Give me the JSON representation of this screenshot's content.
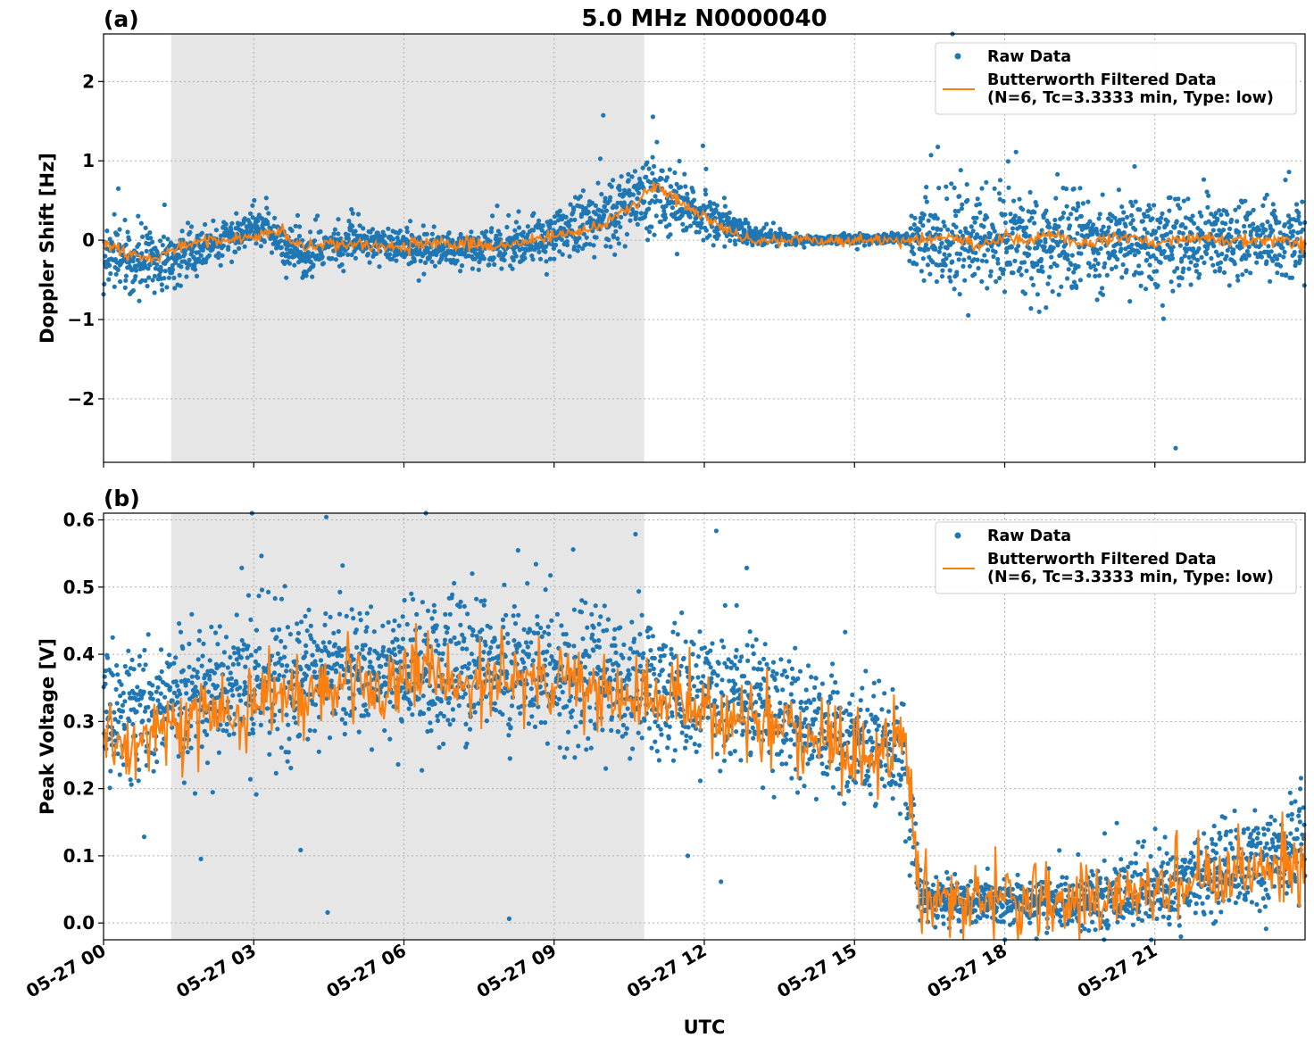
{
  "title": "5.0 MHz N0000040",
  "xlabel": "UTC",
  "x_ticks": [
    "05-27 00",
    "05-27 03",
    "05-27 06",
    "05-27 09",
    "05-27 12",
    "05-27 15",
    "05-27 18",
    "05-27 21"
  ],
  "legend": {
    "raw": "Raw Data",
    "filtered_line1": "Butterworth Filtered Data",
    "filtered_line2": "(N=6, Tc=3.3333 min, Type: low)"
  },
  "colors": {
    "raw": "#1f77b4",
    "filtered": "#ff7f0e",
    "shade": "#e6e6e6",
    "grid": "#b0b0b0"
  },
  "chart_data": [
    {
      "panel": "(a)",
      "type": "scatter",
      "ylabel": "Doppler Shift [Hz]",
      "xlim_hours": [
        0,
        24
      ],
      "ylim": [
        -2.8,
        2.6
      ],
      "y_ticks": [
        -2,
        -1,
        0,
        1,
        2
      ],
      "shaded_interval_hours": [
        1.35,
        10.8
      ],
      "grid": true,
      "legend_position": "top-right",
      "series": [
        {
          "name": "Raw Data",
          "style": "dots",
          "x_hours": [
            0,
            1,
            2,
            3,
            4,
            5,
            6,
            7,
            8,
            9,
            10,
            11,
            12,
            13,
            14,
            15,
            16,
            16.3,
            17,
            18,
            19,
            20,
            21,
            22,
            23,
            24
          ],
          "y_center": [
            -0.15,
            -0.3,
            -0.1,
            0.2,
            -0.2,
            0.0,
            -0.1,
            -0.1,
            -0.1,
            0.05,
            0.3,
            0.6,
            0.3,
            0.05,
            0.0,
            0.02,
            0.02,
            0.0,
            0.0,
            -0.05,
            0.0,
            -0.05,
            0.0,
            0.0,
            0.0,
            0.0
          ],
          "y_spread": [
            0.35,
            0.35,
            0.2,
            0.2,
            0.3,
            0.15,
            0.2,
            0.2,
            0.25,
            0.3,
            0.35,
            0.45,
            0.3,
            0.1,
            0.05,
            0.05,
            0.05,
            0.6,
            0.6,
            0.6,
            0.6,
            0.55,
            0.5,
            0.45,
            0.45,
            0.45
          ]
        },
        {
          "name": "Butterworth Filtered Data (N=6, Tc=3.3333 min, Type: low)",
          "style": "line",
          "x_hours": [
            0,
            0.5,
            1,
            1.5,
            2,
            2.5,
            3,
            3.5,
            4,
            4.5,
            5,
            5.5,
            6,
            6.5,
            7,
            7.5,
            8,
            8.5,
            9,
            9.5,
            10,
            10.5,
            11,
            11.5,
            12,
            12.5,
            13,
            14,
            15,
            16,
            16.5,
            17,
            17.5,
            18,
            18.5,
            19,
            19.5,
            20,
            20.5,
            21,
            21.5,
            22,
            22.5,
            23,
            23.5,
            24
          ],
          "y": [
            -0.05,
            -0.15,
            -0.25,
            -0.1,
            0.0,
            0.0,
            0.05,
            0.1,
            -0.1,
            -0.05,
            -0.05,
            -0.1,
            -0.1,
            -0.05,
            -0.05,
            -0.05,
            -0.1,
            0.0,
            0.05,
            0.1,
            0.2,
            0.4,
            0.7,
            0.5,
            0.3,
            0.1,
            0.0,
            0.0,
            0.0,
            0.0,
            0.0,
            0.05,
            -0.1,
            0.05,
            0.0,
            0.1,
            -0.05,
            0.0,
            0.05,
            -0.05,
            0.0,
            0.05,
            0.0,
            0.0,
            0.0,
            -0.05
          ]
        }
      ]
    },
    {
      "panel": "(b)",
      "type": "scatter",
      "ylabel": "Peak Voltage [V]",
      "xlim_hours": [
        0,
        24
      ],
      "ylim": [
        -0.025,
        0.61
      ],
      "y_ticks": [
        0.0,
        0.1,
        0.2,
        0.3,
        0.4,
        0.5,
        0.6
      ],
      "shaded_interval_hours": [
        1.35,
        10.8
      ],
      "grid": true,
      "legend_position": "top-right",
      "series": [
        {
          "name": "Raw Data",
          "style": "dots",
          "x_hours": [
            0,
            1,
            2,
            3,
            4,
            5,
            6,
            7,
            8,
            9,
            10,
            11,
            12,
            13,
            14,
            15,
            16,
            16.3,
            17,
            18,
            19,
            20,
            21,
            22,
            23,
            24
          ],
          "y_center": [
            0.3,
            0.33,
            0.34,
            0.36,
            0.37,
            0.38,
            0.38,
            0.38,
            0.38,
            0.37,
            0.37,
            0.35,
            0.34,
            0.33,
            0.3,
            0.27,
            0.25,
            0.04,
            0.03,
            0.03,
            0.03,
            0.04,
            0.05,
            0.07,
            0.1,
            0.12
          ],
          "y_spread": [
            0.1,
            0.09,
            0.09,
            0.09,
            0.09,
            0.09,
            0.09,
            0.09,
            0.09,
            0.09,
            0.09,
            0.09,
            0.09,
            0.08,
            0.08,
            0.08,
            0.08,
            0.03,
            0.03,
            0.03,
            0.03,
            0.04,
            0.05,
            0.06,
            0.07,
            0.08
          ]
        },
        {
          "name": "Butterworth Filtered Data (N=6, Tc=3.3333 min, Type: low)",
          "style": "line",
          "x_hours": [
            0,
            0.5,
            1,
            1.5,
            2,
            2.5,
            3,
            3.5,
            4,
            4.5,
            5,
            5.5,
            6,
            6.5,
            7,
            7.5,
            8,
            8.5,
            9,
            9.5,
            10,
            10.5,
            11,
            11.5,
            12,
            12.5,
            13,
            13.5,
            14,
            14.5,
            15,
            15.5,
            16,
            16.3,
            17,
            18,
            19,
            20,
            21,
            21.5,
            22,
            22.5,
            23,
            23.5,
            24
          ],
          "y": [
            0.28,
            0.25,
            0.3,
            0.27,
            0.32,
            0.3,
            0.33,
            0.34,
            0.34,
            0.35,
            0.36,
            0.35,
            0.36,
            0.37,
            0.37,
            0.36,
            0.37,
            0.36,
            0.36,
            0.35,
            0.35,
            0.34,
            0.33,
            0.33,
            0.32,
            0.31,
            0.3,
            0.29,
            0.28,
            0.27,
            0.25,
            0.25,
            0.28,
            0.04,
            0.03,
            0.03,
            0.03,
            0.03,
            0.05,
            0.06,
            0.07,
            0.06,
            0.08,
            0.09,
            0.08
          ]
        }
      ]
    }
  ]
}
